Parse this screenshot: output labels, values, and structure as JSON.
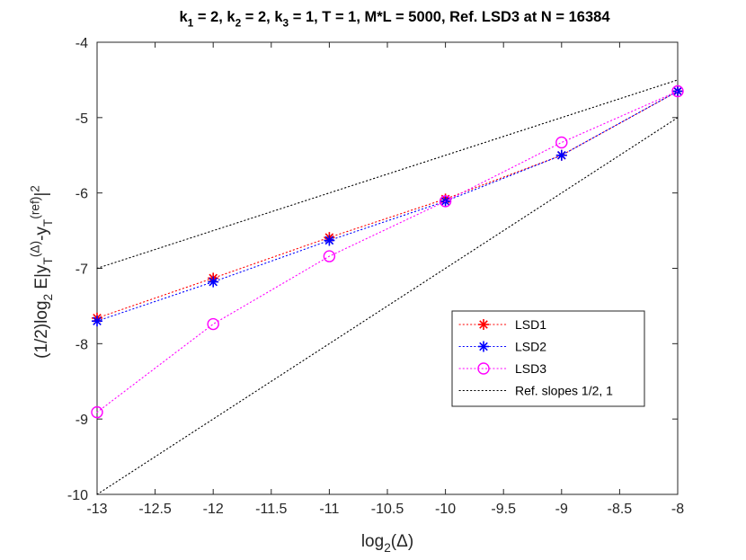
{
  "chart_data": {
    "type": "line",
    "title_parts": [
      {
        "t": "k",
        "s": "base"
      },
      {
        "t": "1",
        "s": "sub"
      },
      {
        "t": " = 2, k",
        "s": "base"
      },
      {
        "t": "2",
        "s": "sub"
      },
      {
        "t": " = 2, k",
        "s": "base"
      },
      {
        "t": "3",
        "s": "sub"
      },
      {
        "t": " = 1, T = 1, M*L  = 5000, Ref. LSD3 at N = 16384",
        "s": "base"
      }
    ],
    "title_text": "k1 = 2, k2 = 2, k3 = 1, T = 1, M*L  = 5000, Ref. LSD3 at N = 16384",
    "xlabel_parts": [
      {
        "t": "log",
        "s": "base"
      },
      {
        "t": "2",
        "s": "sub"
      },
      {
        "t": "(Δ)",
        "s": "base"
      }
    ],
    "xlabel_text": "log2(Δ)",
    "ylabel_parts": [
      {
        "t": "(1/2)log",
        "s": "base"
      },
      {
        "t": "2",
        "s": "sub"
      },
      {
        "t": " E|y",
        "s": "base"
      },
      {
        "t": "T",
        "s": "sub"
      },
      {
        "t": "(Δ)",
        "s": "sup"
      },
      {
        "t": "-y",
        "s": "base"
      },
      {
        "t": "T",
        "s": "sub"
      },
      {
        "t": "(ref)",
        "s": "sup"
      },
      {
        "t": "|",
        "s": "base"
      },
      {
        "t": "2",
        "s": "sup"
      }
    ],
    "ylabel_text": "(1/2)log2 E|yT(Δ)-yT(ref)|2",
    "xlim": [
      -13,
      -8
    ],
    "ylim": [
      -10,
      -4
    ],
    "xticks": [
      -13,
      -12.5,
      -12,
      -11.5,
      -11,
      -10.5,
      -10,
      -9.5,
      -9,
      -8.5,
      -8
    ],
    "xtick_labels": [
      "-13",
      "-12.5",
      "-12",
      "-11.5",
      "-11",
      "-10.5",
      "-10",
      "-9.5",
      "-9",
      "-8.5",
      "-8"
    ],
    "yticks": [
      -10,
      -9,
      -8,
      -7,
      -6,
      -5,
      -4
    ],
    "ytick_labels": [
      "-10",
      "-9",
      "-8",
      "-7",
      "-6",
      "-5",
      "-4"
    ],
    "grid": false,
    "legend_position": "lower-right (inside axes)",
    "series": [
      {
        "name": "LSD1",
        "color": "#ff0000",
        "marker": "asterisk",
        "x": [
          -13,
          -12,
          -11,
          -10,
          -9,
          -8
        ],
        "y": [
          -7.66,
          -7.13,
          -6.59,
          -6.08,
          -5.5,
          -4.65
        ]
      },
      {
        "name": "LSD2",
        "color": "#0000ff",
        "marker": "asterisk",
        "x": [
          -13,
          -12,
          -11,
          -10,
          -9,
          -8
        ],
        "y": [
          -7.7,
          -7.18,
          -6.63,
          -6.11,
          -5.5,
          -4.65
        ]
      },
      {
        "name": "LSD3",
        "color": "#ff00ff",
        "marker": "circle",
        "x": [
          -13,
          -12,
          -11,
          -10,
          -9,
          -8
        ],
        "y": [
          -8.91,
          -7.74,
          -6.84,
          -6.11,
          -5.33,
          -4.65
        ]
      },
      {
        "name": "Ref. slopes 1/2, 1",
        "color": "#000000",
        "marker": "none",
        "lines": [
          {
            "x": [
              -13,
              -8
            ],
            "y": [
              -7.0,
              -4.5
            ]
          },
          {
            "x": [
              -13,
              -8
            ],
            "y": [
              -10.0,
              -5.0
            ]
          }
        ]
      }
    ]
  }
}
